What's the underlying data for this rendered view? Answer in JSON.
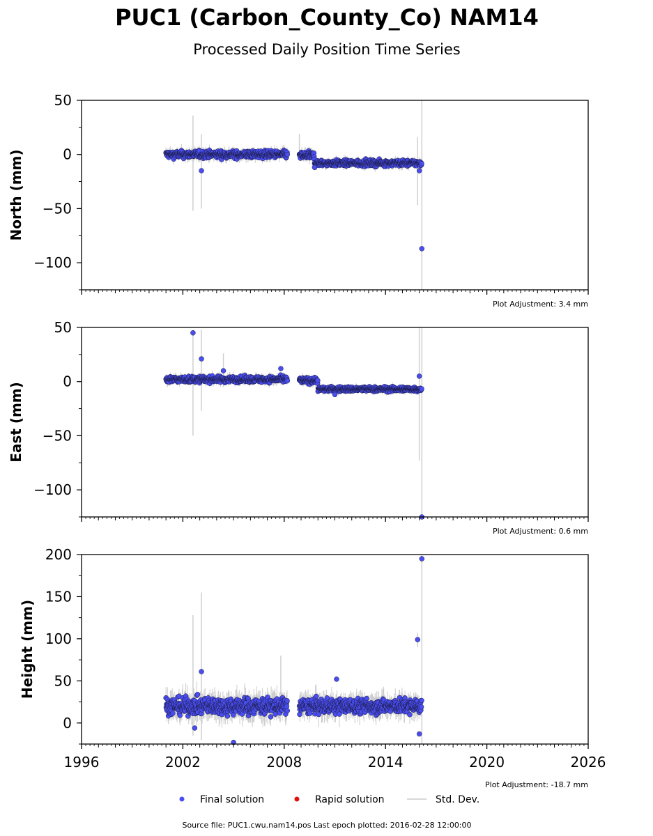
{
  "title": "PUC1 (Carbon_County_Co) NAM14",
  "subtitle": "Processed Daily Position Time Series",
  "source": "Source file: PUC1.cwu.nam14.pos  Last epoch plotted: 2016-02-28 12:00:00",
  "legend": {
    "final": "Final solution",
    "rapid": "Rapid solution",
    "std": "Std. Dev."
  },
  "colors": {
    "final": "#4a4ef0",
    "rapid": "#e01010",
    "std": "#cccccc"
  },
  "chart_data": [
    {
      "type": "scatter",
      "ylabel": "North (mm)",
      "ylim": [
        -125,
        50
      ],
      "yticks": [
        50,
        0,
        -50,
        -100
      ],
      "ytick_labels": [
        "50",
        "0",
        "−50",
        "−100"
      ],
      "xlim": [
        1996,
        2026
      ],
      "adjustment": "Plot Adjustment: 3.4 mm",
      "gaps": [
        [
          2008.2,
          2008.9
        ]
      ],
      "segments": [
        {
          "x0": 2001.0,
          "x1": 2008.2,
          "mean": 0,
          "noise": 3
        },
        {
          "x0": 2008.9,
          "x1": 2009.8,
          "mean": -1,
          "noise": 3
        },
        {
          "x0": 2009.8,
          "x1": 2016.15,
          "mean": -8,
          "noise": 2.5
        }
      ],
      "outliers": [
        {
          "x": 2003.1,
          "y": -15
        },
        {
          "x": 2009.8,
          "y": -12
        },
        {
          "x": 2016.0,
          "y": -15
        },
        {
          "x": 2016.15,
          "y": -87
        }
      ],
      "long_errors": [
        {
          "x": 2002.6,
          "y0": -52,
          "y1": 36
        },
        {
          "x": 2003.1,
          "y0": -50,
          "y1": 19
        },
        {
          "x": 2016.15,
          "y0": -125,
          "y1": 50
        },
        {
          "x": 2015.9,
          "y0": -47,
          "y1": 16
        },
        {
          "x": 2008.9,
          "y0": -4,
          "y1": 19
        }
      ]
    },
    {
      "type": "scatter",
      "ylabel": "East (mm)",
      "ylim": [
        -125,
        50
      ],
      "yticks": [
        50,
        0,
        -50,
        -100
      ],
      "ytick_labels": [
        "50",
        "0",
        "−50",
        "−100"
      ],
      "xlim": [
        1996,
        2026
      ],
      "adjustment": "Plot Adjustment: 0.6 mm",
      "gaps": [
        [
          2008.2,
          2008.9
        ]
      ],
      "segments": [
        {
          "x0": 2001.0,
          "x1": 2008.2,
          "mean": 2,
          "noise": 2.5
        },
        {
          "x0": 2008.9,
          "x1": 2010.0,
          "mean": 1,
          "noise": 2.5
        },
        {
          "x0": 2010.0,
          "x1": 2016.15,
          "mean": -7,
          "noise": 2
        }
      ],
      "outliers": [
        {
          "x": 2002.6,
          "y": 45
        },
        {
          "x": 2003.1,
          "y": 21
        },
        {
          "x": 2004.4,
          "y": 10
        },
        {
          "x": 2007.8,
          "y": 12
        },
        {
          "x": 2011.0,
          "y": -12
        },
        {
          "x": 2016.0,
          "y": 5
        },
        {
          "x": 2016.15,
          "y": -125
        }
      ],
      "long_errors": [
        {
          "x": 2002.6,
          "y0": -50,
          "y1": 45
        },
        {
          "x": 2003.1,
          "y0": -27,
          "y1": 48
        },
        {
          "x": 2004.4,
          "y0": -5,
          "y1": 26
        },
        {
          "x": 2016.0,
          "y0": -73,
          "y1": 50
        },
        {
          "x": 2016.15,
          "y0": -125,
          "y1": 50
        }
      ]
    },
    {
      "type": "scatter",
      "ylabel": "Height (mm)",
      "ylim": [
        -25,
        200
      ],
      "yticks": [
        200,
        150,
        100,
        50,
        0
      ],
      "ytick_labels": [
        "200",
        "150",
        "100",
        "50",
        "0"
      ],
      "xlim": [
        1996,
        2026
      ],
      "xticks": [
        1996,
        2002,
        2008,
        2014,
        2020,
        2026
      ],
      "xtick_labels": [
        "1996",
        "2002",
        "2008",
        "2014",
        "2020",
        "2026"
      ],
      "adjustment": "Plot Adjustment: -18.7 mm",
      "gaps": [
        [
          2008.2,
          2008.9
        ]
      ],
      "segments": [
        {
          "x0": 2001.0,
          "x1": 2008.2,
          "mean": 20,
          "noise": 9
        },
        {
          "x0": 2008.9,
          "x1": 2016.15,
          "mean": 20,
          "noise": 8
        }
      ],
      "outliers": [
        {
          "x": 2003.1,
          "y": 61
        },
        {
          "x": 2002.7,
          "y": -6
        },
        {
          "x": 2005.0,
          "y": -23
        },
        {
          "x": 2011.1,
          "y": 52
        },
        {
          "x": 2015.9,
          "y": 99
        },
        {
          "x": 2016.15,
          "y": 195
        },
        {
          "x": 2016.0,
          "y": -13
        }
      ],
      "long_errors": [
        {
          "x": 2002.6,
          "y0": -15,
          "y1": 128
        },
        {
          "x": 2003.1,
          "y0": -20,
          "y1": 155
        },
        {
          "x": 2016.15,
          "y0": -25,
          "y1": 200
        },
        {
          "x": 2015.9,
          "y0": 90,
          "y1": 107
        },
        {
          "x": 2007.8,
          "y0": 10,
          "y1": 80
        }
      ]
    }
  ]
}
